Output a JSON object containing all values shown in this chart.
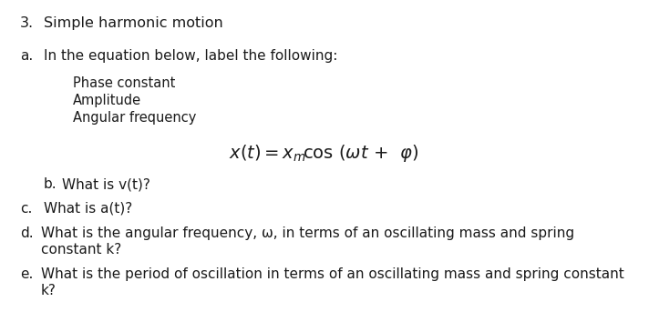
{
  "background_color": "#ffffff",
  "text_color": "#1a1a1a",
  "title_num": "3.",
  "title_text": "Simple harmonic motion",
  "part_a_label": "a.",
  "part_a_text": "In the equation below, label the following:",
  "bullets": [
    "Phase constant",
    "Amplitude",
    "Angular frequency"
  ],
  "part_b_label": "b.",
  "part_b_text": "What is v(t)?",
  "part_c_label": "c.",
  "part_c_text": "What is a(t)?",
  "part_d_label": "d.",
  "part_d_text1": "What is the angular frequency, ω, in terms of an oscillating mass and spring",
  "part_d_text2": "constant k?",
  "part_e_label": "e.",
  "part_e_text1": "What is the period of oscillation in terms of an oscillating mass and spring constant",
  "part_e_text2": "k?",
  "font_size_title": 11.5,
  "font_size_body": 11.0,
  "font_size_equation": 14,
  "font_size_bullets": 10.5
}
